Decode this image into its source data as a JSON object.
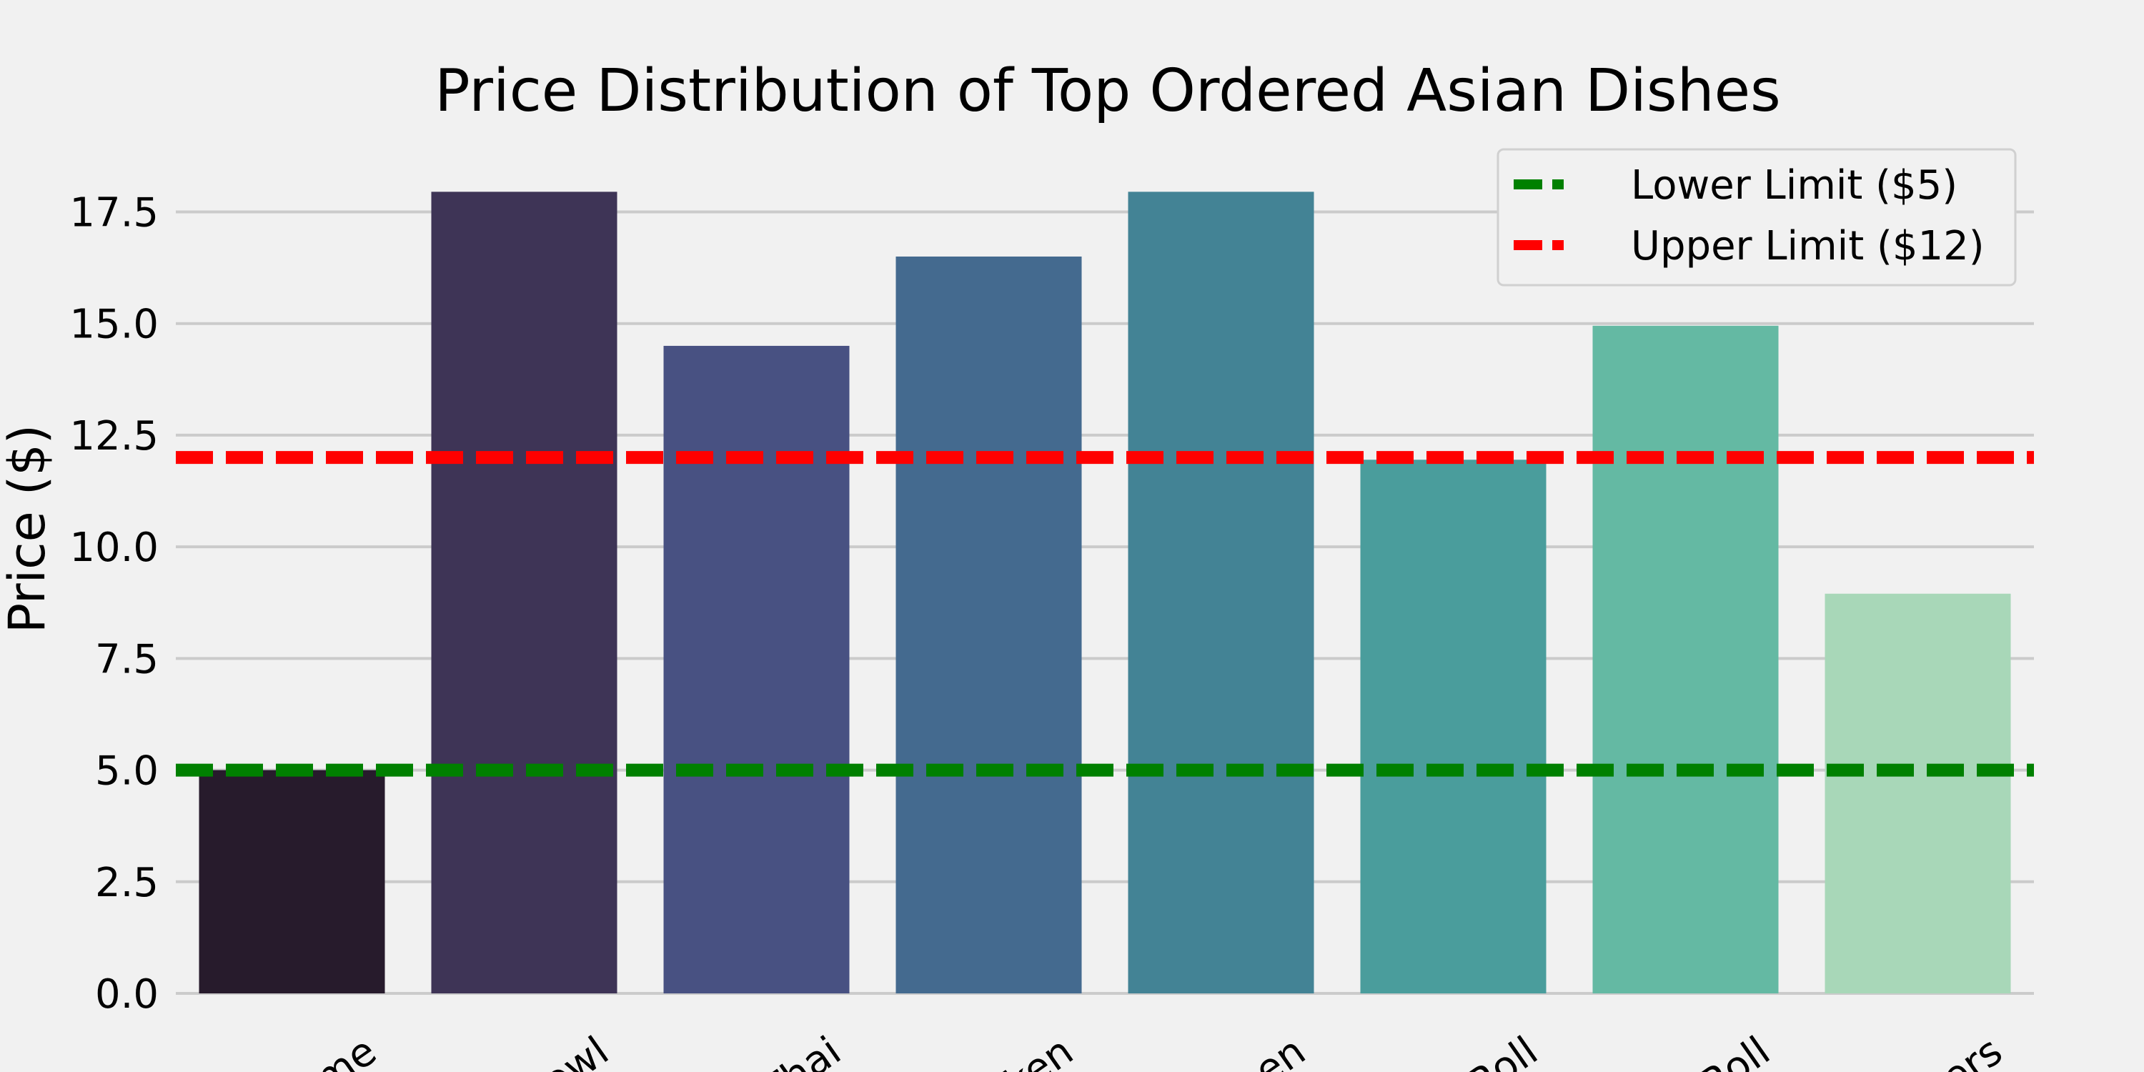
{
  "chart_data": {
    "type": "bar",
    "title": "Price Distribution of Top Ordered Asian Dishes",
    "xlabel": "",
    "ylabel": "Price ($)",
    "ylim": [
      0,
      18.9
    ],
    "yticks": [
      "0.0",
      "2.5",
      "5.0",
      "7.5",
      "10.0",
      "12.5",
      "15.0",
      "17.5"
    ],
    "ytick_values": [
      0,
      2.5,
      5,
      7.5,
      10,
      12.5,
      15,
      17.5
    ],
    "grid": true,
    "categories": [
      "me",
      "owl",
      "Thai",
      "ken",
      "men",
      "Roll",
      "Roll",
      "kers"
    ],
    "values": [
      5.0,
      17.95,
      14.5,
      16.5,
      17.95,
      11.95,
      14.95,
      8.95
    ],
    "bar_colors": [
      "#271b2c",
      "#3e3456",
      "#485182",
      "#446a8f",
      "#438395",
      "#4a9d9c",
      "#64b9a3",
      "#a8d7b8"
    ],
    "reference_lines": [
      {
        "name": "Lower Limit ($5)",
        "value": 5,
        "color": "#008000",
        "style": "dashed"
      },
      {
        "name": "Upper Limit ($12)",
        "value": 12,
        "color": "#ff0000",
        "style": "dashed"
      }
    ],
    "legend": {
      "placement": "top-right",
      "entries": [
        "Lower Limit ($5)",
        "Upper Limit ($12)"
      ]
    }
  }
}
